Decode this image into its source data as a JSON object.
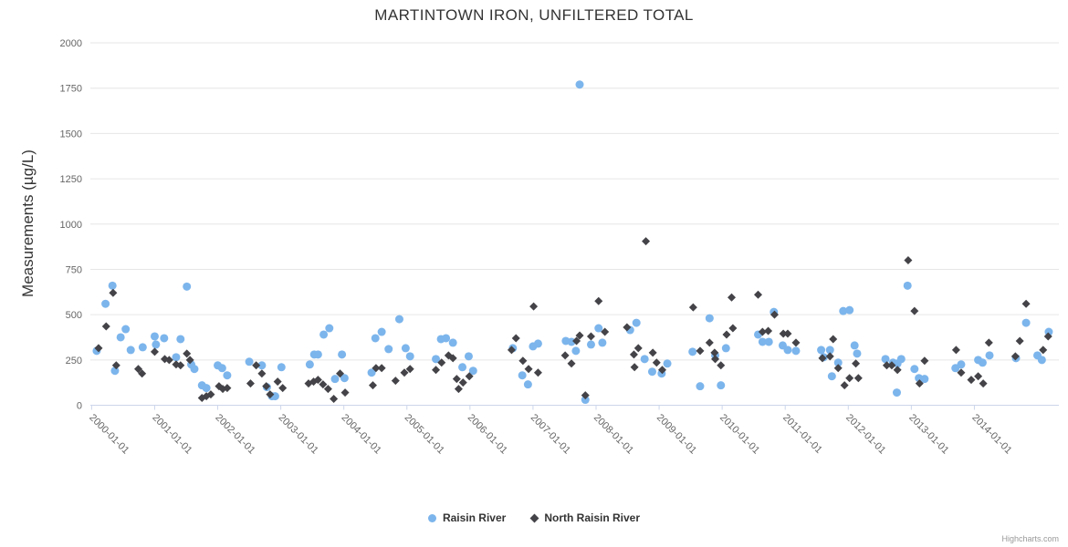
{
  "title": "MARTINTOWN IRON, UNFILTERED TOTAL",
  "credits": {
    "label": "Highcharts.com"
  },
  "legend": {
    "items": [
      {
        "label": "Raisin River",
        "marker": "circle",
        "color": "#7cb5ec"
      },
      {
        "label": "North Raisin River",
        "marker": "diamond",
        "color": "#434348"
      }
    ]
  },
  "colors": {
    "raisin_river": "#7cb5ec",
    "north_raisin_river": "#434348",
    "gridline": "#e6e6e6",
    "axis_line": "#ccd6eb",
    "tick_label": "#666666",
    "title": "#333333"
  },
  "chart_data": {
    "type": "scatter",
    "title": "MARTINTOWN IRON, UNFILTERED TOTAL",
    "xlabel": "",
    "ylabel": "Measurements (µg/L)",
    "xlim": [
      1999.98,
      2015.34
    ],
    "ylim": [
      0,
      2000
    ],
    "grid": true,
    "legend_position": "bottom",
    "y_ticks": [
      0,
      250,
      500,
      750,
      1000,
      1250,
      1500,
      1750,
      2000
    ],
    "x_ticks": [
      {
        "year": 2000,
        "label": "2000-01-01"
      },
      {
        "year": 2001,
        "label": "2001-01-01"
      },
      {
        "year": 2002,
        "label": "2002-01-01"
      },
      {
        "year": 2003,
        "label": "2003-01-01"
      },
      {
        "year": 2004,
        "label": "2004-01-01"
      },
      {
        "year": 2005,
        "label": "2005-01-01"
      },
      {
        "year": 2006,
        "label": "2006-01-01"
      },
      {
        "year": 2007,
        "label": "2007-01-01"
      },
      {
        "year": 2008,
        "label": "2008-01-01"
      },
      {
        "year": 2009,
        "label": "2009-01-01"
      },
      {
        "year": 2010,
        "label": "2010-01-01"
      },
      {
        "year": 2011,
        "label": "2011-01-01"
      },
      {
        "year": 2012,
        "label": "2012-01-01"
      },
      {
        "year": 2013,
        "label": "2013-01-01"
      },
      {
        "year": 2014,
        "label": "2014-01-01"
      }
    ],
    "series": [
      {
        "name": "Raisin River",
        "marker": "circle",
        "color": "#7cb5ec",
        "points": [
          [
            2000.08,
            300
          ],
          [
            2000.22,
            560
          ],
          [
            2000.33,
            660
          ],
          [
            2000.37,
            190
          ],
          [
            2000.46,
            375
          ],
          [
            2000.54,
            420
          ],
          [
            2000.62,
            305
          ],
          [
            2000.81,
            320
          ],
          [
            2001.0,
            380
          ],
          [
            2001.02,
            335
          ],
          [
            2001.15,
            370
          ],
          [
            2001.34,
            265
          ],
          [
            2001.41,
            365
          ],
          [
            2001.51,
            655
          ],
          [
            2001.58,
            225
          ],
          [
            2001.63,
            200
          ],
          [
            2001.75,
            110
          ],
          [
            2001.82,
            95
          ],
          [
            2002.0,
            220
          ],
          [
            2002.07,
            205
          ],
          [
            2002.15,
            165
          ],
          [
            2002.5,
            240
          ],
          [
            2002.7,
            220
          ],
          [
            2002.78,
            100
          ],
          [
            2002.86,
            50
          ],
          [
            2002.91,
            50
          ],
          [
            2003.01,
            210
          ],
          [
            2003.46,
            225
          ],
          [
            2003.53,
            280
          ],
          [
            2003.59,
            280
          ],
          [
            2003.68,
            390
          ],
          [
            2003.77,
            425
          ],
          [
            2003.86,
            145
          ],
          [
            2003.97,
            280
          ],
          [
            2004.01,
            150
          ],
          [
            2004.44,
            180
          ],
          [
            2004.5,
            370
          ],
          [
            2004.6,
            405
          ],
          [
            2004.71,
            310
          ],
          [
            2004.88,
            475
          ],
          [
            2004.98,
            315
          ],
          [
            2005.05,
            270
          ],
          [
            2005.46,
            255
          ],
          [
            2005.54,
            365
          ],
          [
            2005.62,
            370
          ],
          [
            2005.73,
            345
          ],
          [
            2005.88,
            210
          ],
          [
            2005.98,
            270
          ],
          [
            2006.05,
            190
          ],
          [
            2006.68,
            315
          ],
          [
            2006.83,
            165
          ],
          [
            2006.92,
            115
          ],
          [
            2007.0,
            325
          ],
          [
            2007.08,
            340
          ],
          [
            2007.52,
            355
          ],
          [
            2007.61,
            350
          ],
          [
            2007.68,
            300
          ],
          [
            2007.74,
            1770
          ],
          [
            2007.83,
            30
          ],
          [
            2007.92,
            335
          ],
          [
            2008.04,
            425
          ],
          [
            2008.1,
            345
          ],
          [
            2008.54,
            415
          ],
          [
            2008.64,
            455
          ],
          [
            2008.77,
            255
          ],
          [
            2008.89,
            185
          ],
          [
            2009.04,
            175
          ],
          [
            2009.13,
            230
          ],
          [
            2009.53,
            295
          ],
          [
            2009.65,
            105
          ],
          [
            2009.8,
            480
          ],
          [
            2009.89,
            275
          ],
          [
            2009.98,
            110
          ],
          [
            2010.06,
            315
          ],
          [
            2010.57,
            390
          ],
          [
            2010.64,
            350
          ],
          [
            2010.74,
            350
          ],
          [
            2010.82,
            515
          ],
          [
            2010.96,
            330
          ],
          [
            2011.04,
            305
          ],
          [
            2011.17,
            300
          ],
          [
            2011.57,
            305
          ],
          [
            2011.61,
            265
          ],
          [
            2011.71,
            305
          ],
          [
            2011.74,
            160
          ],
          [
            2011.84,
            235
          ],
          [
            2011.92,
            520
          ],
          [
            2012.02,
            525
          ],
          [
            2012.1,
            330
          ],
          [
            2012.14,
            285
          ],
          [
            2012.59,
            255
          ],
          [
            2012.71,
            235
          ],
          [
            2012.77,
            70
          ],
          [
            2012.78,
            230
          ],
          [
            2012.84,
            255
          ],
          [
            2012.94,
            660
          ],
          [
            2013.05,
            200
          ],
          [
            2013.12,
            150
          ],
          [
            2013.21,
            145
          ],
          [
            2013.7,
            205
          ],
          [
            2013.79,
            225
          ],
          [
            2014.06,
            250
          ],
          [
            2014.13,
            235
          ],
          [
            2014.24,
            275
          ],
          [
            2014.66,
            260
          ],
          [
            2014.82,
            455
          ],
          [
            2015.0,
            275
          ],
          [
            2015.07,
            250
          ],
          [
            2015.18,
            405
          ]
        ]
      },
      {
        "name": "North Raisin River",
        "marker": "diamond",
        "color": "#434348",
        "points": [
          [
            2000.11,
            315
          ],
          [
            2000.23,
            435
          ],
          [
            2000.34,
            620
          ],
          [
            2000.39,
            220
          ],
          [
            2000.74,
            200
          ],
          [
            2000.8,
            175
          ],
          [
            2001.0,
            295
          ],
          [
            2001.16,
            255
          ],
          [
            2001.23,
            250
          ],
          [
            2001.34,
            225
          ],
          [
            2001.41,
            220
          ],
          [
            2001.51,
            285
          ],
          [
            2001.56,
            250
          ],
          [
            2001.75,
            40
          ],
          [
            2001.82,
            50
          ],
          [
            2001.89,
            60
          ],
          [
            2002.02,
            105
          ],
          [
            2002.08,
            90
          ],
          [
            2002.15,
            95
          ],
          [
            2002.52,
            120
          ],
          [
            2002.61,
            220
          ],
          [
            2002.7,
            175
          ],
          [
            2002.77,
            105
          ],
          [
            2002.83,
            60
          ],
          [
            2002.95,
            130
          ],
          [
            2003.03,
            95
          ],
          [
            2003.44,
            120
          ],
          [
            2003.52,
            130
          ],
          [
            2003.59,
            140
          ],
          [
            2003.67,
            115
          ],
          [
            2003.75,
            90
          ],
          [
            2003.84,
            35
          ],
          [
            2003.94,
            175
          ],
          [
            2004.02,
            70
          ],
          [
            2004.46,
            110
          ],
          [
            2004.51,
            205
          ],
          [
            2004.6,
            205
          ],
          [
            2004.82,
            135
          ],
          [
            2004.96,
            180
          ],
          [
            2005.05,
            200
          ],
          [
            2005.46,
            195
          ],
          [
            2005.55,
            235
          ],
          [
            2005.66,
            275
          ],
          [
            2005.73,
            260
          ],
          [
            2005.79,
            145
          ],
          [
            2005.82,
            90
          ],
          [
            2005.89,
            125
          ],
          [
            2005.99,
            160
          ],
          [
            2006.66,
            305
          ],
          [
            2006.73,
            370
          ],
          [
            2006.84,
            245
          ],
          [
            2006.93,
            200
          ],
          [
            2007.01,
            545
          ],
          [
            2007.08,
            180
          ],
          [
            2007.51,
            275
          ],
          [
            2007.61,
            230
          ],
          [
            2007.69,
            355
          ],
          [
            2007.74,
            385
          ],
          [
            2007.83,
            55
          ],
          [
            2007.92,
            380
          ],
          [
            2008.04,
            575
          ],
          [
            2008.14,
            405
          ],
          [
            2008.49,
            430
          ],
          [
            2008.6,
            280
          ],
          [
            2008.61,
            210
          ],
          [
            2008.67,
            315
          ],
          [
            2008.79,
            905
          ],
          [
            2008.9,
            290
          ],
          [
            2008.96,
            235
          ],
          [
            2009.05,
            195
          ],
          [
            2009.54,
            540
          ],
          [
            2009.65,
            300
          ],
          [
            2009.8,
            345
          ],
          [
            2009.88,
            290
          ],
          [
            2009.89,
            255
          ],
          [
            2009.98,
            220
          ],
          [
            2010.07,
            390
          ],
          [
            2010.15,
            595
          ],
          [
            2010.17,
            425
          ],
          [
            2010.57,
            610
          ],
          [
            2010.64,
            405
          ],
          [
            2010.73,
            410
          ],
          [
            2010.83,
            500
          ],
          [
            2010.97,
            395
          ],
          [
            2011.04,
            395
          ],
          [
            2011.17,
            345
          ],
          [
            2011.59,
            260
          ],
          [
            2011.71,
            270
          ],
          [
            2011.76,
            365
          ],
          [
            2011.84,
            205
          ],
          [
            2011.94,
            110
          ],
          [
            2012.02,
            150
          ],
          [
            2012.12,
            230
          ],
          [
            2012.16,
            150
          ],
          [
            2012.61,
            220
          ],
          [
            2012.69,
            220
          ],
          [
            2012.78,
            195
          ],
          [
            2012.95,
            800
          ],
          [
            2013.05,
            520
          ],
          [
            2013.13,
            120
          ],
          [
            2013.21,
            245
          ],
          [
            2013.71,
            305
          ],
          [
            2013.79,
            180
          ],
          [
            2013.95,
            140
          ],
          [
            2014.06,
            160
          ],
          [
            2014.14,
            120
          ],
          [
            2014.23,
            345
          ],
          [
            2014.65,
            270
          ],
          [
            2014.72,
            355
          ],
          [
            2014.82,
            560
          ],
          [
            2015.09,
            305
          ],
          [
            2015.17,
            380
          ]
        ]
      }
    ]
  }
}
